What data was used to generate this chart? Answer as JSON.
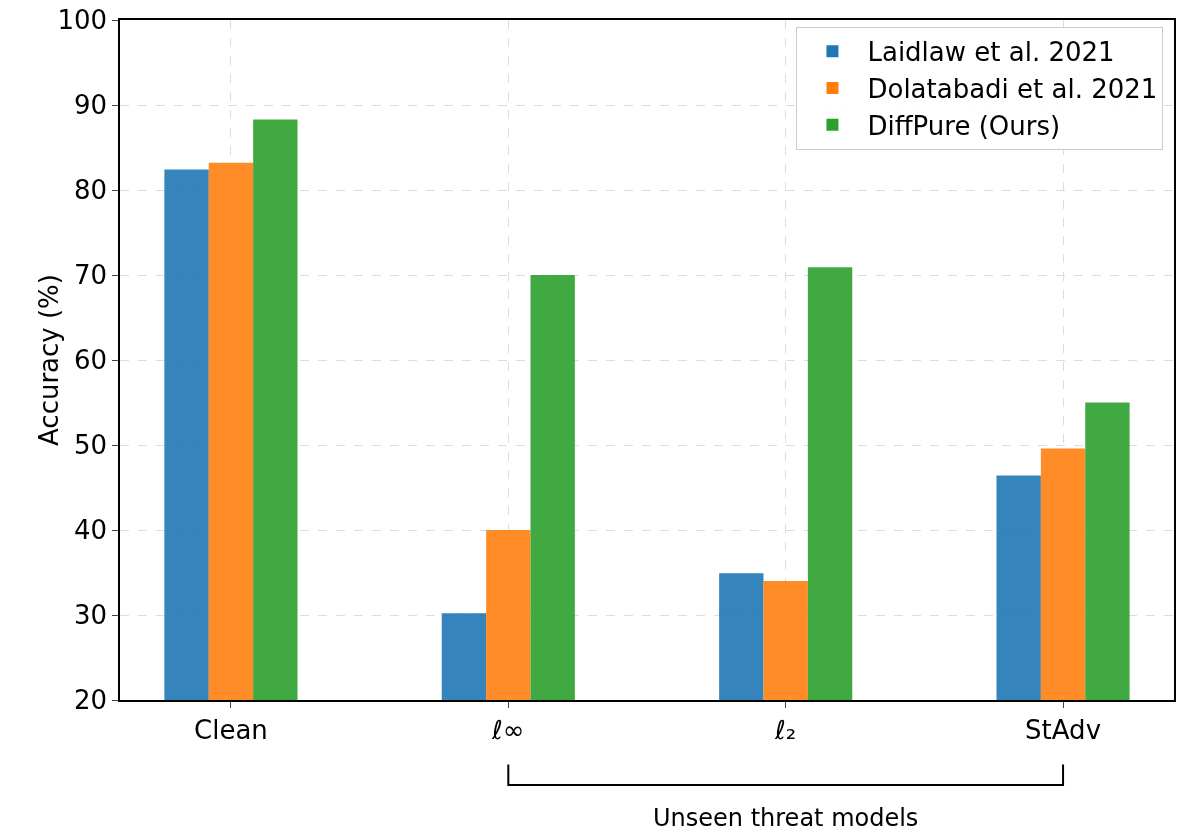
{
  "chart_data": {
    "type": "bar",
    "ylabel": "Accuracy (%)",
    "categories": [
      "Clean",
      "ℓ∞",
      "ℓ₂",
      "StAdv"
    ],
    "series": [
      {
        "name": "Laidlaw et al. 2021",
        "color": "#1f77b4",
        "values": [
          82.4,
          30.2,
          34.9,
          46.4
        ]
      },
      {
        "name": "Dolatabadi et al. 2021",
        "color": "#ff7f0e",
        "values": [
          83.2,
          40.0,
          34.0,
          49.6
        ]
      },
      {
        "name": "DiffPure (Ours)",
        "color": "#2ca02c",
        "values": [
          88.3,
          70.0,
          70.9,
          55.0
        ]
      }
    ],
    "ylim": [
      20,
      100
    ],
    "yticks": [
      20,
      30,
      40,
      50,
      60,
      70,
      80,
      90,
      100
    ],
    "grid": true,
    "legend": "top right",
    "annotations": [
      "Unseen threat models"
    ]
  }
}
